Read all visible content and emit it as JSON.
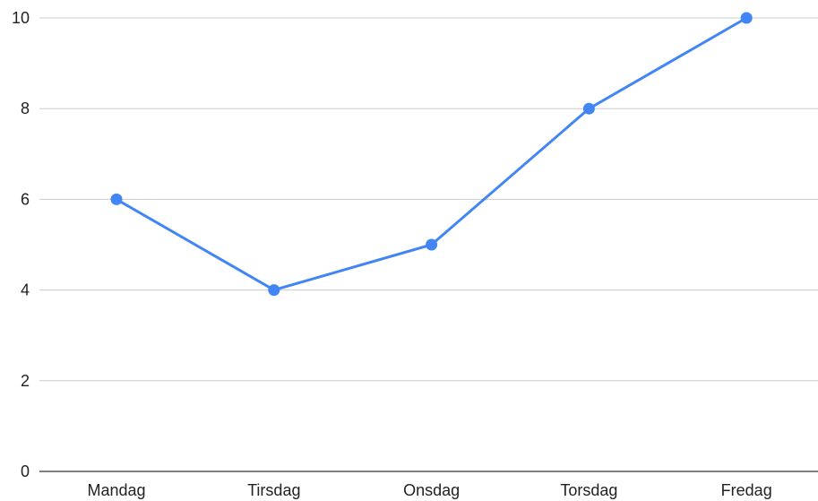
{
  "chart_data": {
    "type": "line",
    "categories": [
      "Mandag",
      "Tirsdag",
      "Onsdag",
      "Torsdag",
      "Fredag"
    ],
    "series": [
      {
        "values": [
          6,
          4,
          5,
          8,
          10
        ],
        "color": "#4285f4"
      }
    ],
    "yticks": [
      "0",
      "2",
      "4",
      "6",
      "8",
      "10"
    ],
    "ylim": [
      0,
      10
    ],
    "grid": true,
    "gridlines_color": "#cccccc",
    "axis_color": "#333333",
    "marker": "circle"
  }
}
